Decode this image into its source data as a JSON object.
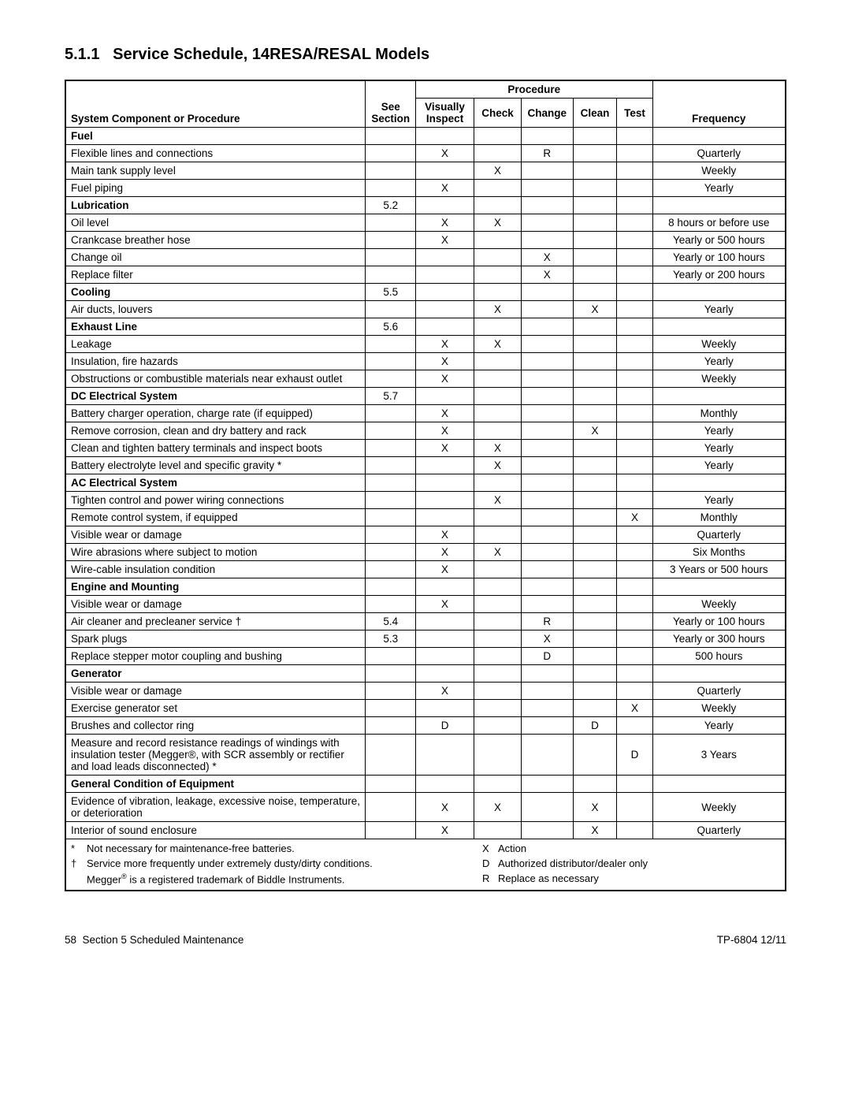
{
  "heading": {
    "number": "5.1.1",
    "title": "Service Schedule, 14RESA/RESAL Models"
  },
  "table": {
    "columns": {
      "proc": "System Component or Procedure",
      "sec": "See Section",
      "vi": "Visually Inspect",
      "ck": "Check",
      "ch": "Change",
      "cl": "Clean",
      "te": "Test",
      "fr": "Frequency",
      "proc_group": "Procedure"
    },
    "groups": [
      {
        "name": "Fuel",
        "section": "",
        "rows": [
          {
            "name": "Flexible lines and connections",
            "sec": "",
            "vi": "X",
            "ck": "",
            "ch": "R",
            "cl": "",
            "te": "",
            "fr": "Quarterly"
          },
          {
            "name": "Main tank supply level",
            "sec": "",
            "vi": "",
            "ck": "X",
            "ch": "",
            "cl": "",
            "te": "",
            "fr": "Weekly"
          },
          {
            "name": "Fuel piping",
            "sec": "",
            "vi": "X",
            "ck": "",
            "ch": "",
            "cl": "",
            "te": "",
            "fr": "Yearly"
          }
        ]
      },
      {
        "name": "Lubrication",
        "section": "5.2",
        "rows": [
          {
            "name": "Oil level",
            "sec": "",
            "vi": "X",
            "ck": "X",
            "ch": "",
            "cl": "",
            "te": "",
            "fr": "8 hours or before use"
          },
          {
            "name": "Crankcase breather hose",
            "sec": "",
            "vi": "X",
            "ck": "",
            "ch": "",
            "cl": "",
            "te": "",
            "fr": "Yearly or 500 hours"
          },
          {
            "name": "Change oil",
            "sec": "",
            "vi": "",
            "ck": "",
            "ch": "X",
            "cl": "",
            "te": "",
            "fr": "Yearly or 100 hours"
          },
          {
            "name": "Replace filter",
            "sec": "",
            "vi": "",
            "ck": "",
            "ch": "X",
            "cl": "",
            "te": "",
            "fr": "Yearly or 200 hours"
          }
        ]
      },
      {
        "name": "Cooling",
        "section": "5.5",
        "rows": [
          {
            "name": "Air ducts, louvers",
            "sec": "",
            "vi": "",
            "ck": "X",
            "ch": "",
            "cl": "X",
            "te": "",
            "fr": "Yearly"
          }
        ]
      },
      {
        "name": "Exhaust Line",
        "section": "5.6",
        "rows": [
          {
            "name": "Leakage",
            "sec": "",
            "vi": "X",
            "ck": "X",
            "ch": "",
            "cl": "",
            "te": "",
            "fr": "Weekly"
          },
          {
            "name": "Insulation, fire hazards",
            "sec": "",
            "vi": "X",
            "ck": "",
            "ch": "",
            "cl": "",
            "te": "",
            "fr": "Yearly"
          },
          {
            "name": "Obstructions or combustible materials near exhaust outlet",
            "sec": "",
            "vi": "X",
            "ck": "",
            "ch": "",
            "cl": "",
            "te": "",
            "fr": "Weekly"
          }
        ]
      },
      {
        "name": "DC Electrical System",
        "section": "5.7",
        "rows": [
          {
            "name": "Battery charger operation, charge rate (if equipped)",
            "sec": "",
            "vi": "X",
            "ck": "",
            "ch": "",
            "cl": "",
            "te": "",
            "fr": "Monthly"
          },
          {
            "name": "Remove corrosion, clean and dry battery and rack",
            "sec": "",
            "vi": "X",
            "ck": "",
            "ch": "",
            "cl": "X",
            "te": "",
            "fr": "Yearly"
          },
          {
            "name": "Clean and tighten battery terminals and inspect boots",
            "sec": "",
            "vi": "X",
            "ck": "X",
            "ch": "",
            "cl": "",
            "te": "",
            "fr": "Yearly"
          },
          {
            "name": "Battery electrolyte level and specific gravity *",
            "sec": "",
            "vi": "",
            "ck": "X",
            "ch": "",
            "cl": "",
            "te": "",
            "fr": "Yearly"
          }
        ]
      },
      {
        "name": "AC Electrical System",
        "section": "",
        "rows": [
          {
            "name": "Tighten control and power wiring connections",
            "sec": "",
            "vi": "",
            "ck": "X",
            "ch": "",
            "cl": "",
            "te": "",
            "fr": "Yearly"
          },
          {
            "name": "Remote control system, if equipped",
            "sec": "",
            "vi": "",
            "ck": "",
            "ch": "",
            "cl": "",
            "te": "X",
            "fr": "Monthly"
          },
          {
            "name": "Visible wear or damage",
            "sec": "",
            "vi": "X",
            "ck": "",
            "ch": "",
            "cl": "",
            "te": "",
            "fr": "Quarterly"
          },
          {
            "name": "Wire abrasions where subject to motion",
            "sec": "",
            "vi": "X",
            "ck": "X",
            "ch": "",
            "cl": "",
            "te": "",
            "fr": "Six Months"
          },
          {
            "name": "Wire-cable insulation condition",
            "sec": "",
            "vi": "X",
            "ck": "",
            "ch": "",
            "cl": "",
            "te": "",
            "fr": "3 Years or 500 hours"
          }
        ]
      },
      {
        "name": "Engine and Mounting",
        "section": "",
        "rows": [
          {
            "name": "Visible wear or damage",
            "sec": "",
            "vi": "X",
            "ck": "",
            "ch": "",
            "cl": "",
            "te": "",
            "fr": "Weekly"
          },
          {
            "name": "Air cleaner and precleaner service †",
            "sec": "5.4",
            "vi": "",
            "ck": "",
            "ch": "R",
            "cl": "",
            "te": "",
            "fr": "Yearly or 100 hours"
          },
          {
            "name": "Spark plugs",
            "sec": "5.3",
            "vi": "",
            "ck": "",
            "ch": "X",
            "cl": "",
            "te": "",
            "fr": "Yearly or 300 hours"
          },
          {
            "name": "Replace stepper motor coupling and bushing",
            "sec": "",
            "vi": "",
            "ck": "",
            "ch": "D",
            "cl": "",
            "te": "",
            "fr": "500 hours"
          }
        ]
      },
      {
        "name": "Generator",
        "section": "",
        "rows": [
          {
            "name": "Visible wear or damage",
            "sec": "",
            "vi": "X",
            "ck": "",
            "ch": "",
            "cl": "",
            "te": "",
            "fr": "Quarterly"
          },
          {
            "name": "Exercise generator set",
            "sec": "",
            "vi": "",
            "ck": "",
            "ch": "",
            "cl": "",
            "te": "X",
            "fr": "Weekly"
          },
          {
            "name": "Brushes and collector ring",
            "sec": "",
            "vi": "D",
            "ck": "",
            "ch": "",
            "cl": "D",
            "te": "",
            "fr": "Yearly"
          },
          {
            "name": "Measure and record resistance readings of windings with insulation tester (Megger®, with SCR assembly or rectifier and load leads disconnected) *",
            "sec": "",
            "vi": "",
            "ck": "",
            "ch": "",
            "cl": "",
            "te": "D",
            "fr": "3 Years"
          }
        ]
      },
      {
        "name": "General Condition of Equipment",
        "section": "",
        "rows": [
          {
            "name": "Evidence of vibration, leakage, excessive noise, temperature, or deterioration",
            "sec": "",
            "vi": "X",
            "ck": "X",
            "ch": "",
            "cl": "X",
            "te": "",
            "fr": "Weekly"
          },
          {
            "name": "Interior of sound enclosure",
            "sec": "",
            "vi": "X",
            "ck": "",
            "ch": "",
            "cl": "X",
            "te": "",
            "fr": "Quarterly"
          }
        ]
      }
    ]
  },
  "legend": {
    "left": [
      {
        "sym": "*",
        "txt": "Not necessary for maintenance-free batteries."
      },
      {
        "sym": "†",
        "txt": "Service more frequently under extremely dusty/dirty conditions."
      },
      {
        "sym": "",
        "txt": "Megger® is a registered trademark of Biddle Instruments."
      }
    ],
    "right": [
      {
        "sym": "X",
        "txt": "Action"
      },
      {
        "sym": "D",
        "txt": "Authorized distributor/dealer only"
      },
      {
        "sym": "R",
        "txt": "Replace as necessary"
      }
    ]
  },
  "footer": {
    "left_page": "58",
    "left_text": "Section 5  Scheduled Maintenance",
    "right": "TP-6804 12/11"
  }
}
